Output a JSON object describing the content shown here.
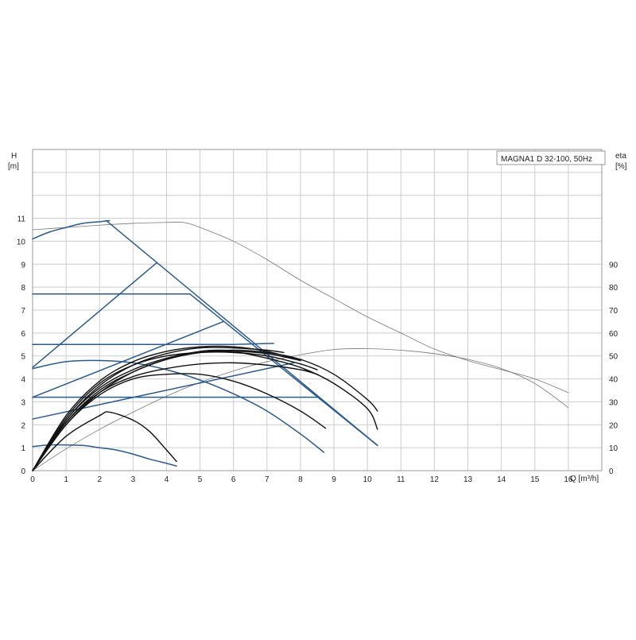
{
  "chart_data": {
    "type": "line",
    "title": "MAGNA1 D 32-100, 50Hz",
    "x_axis": {
      "label": "Q [m³/h]",
      "min": 0,
      "max": 17,
      "ticks": [
        0,
        1,
        2,
        3,
        4,
        5,
        6,
        7,
        8,
        9,
        10,
        11,
        12,
        13,
        14,
        15,
        16
      ]
    },
    "y_left": {
      "label_line1": "H",
      "label_line2": "[m]",
      "min": 0,
      "max": 14,
      "ticks": [
        0,
        1,
        2,
        3,
        4,
        5,
        6,
        7,
        8,
        9,
        10,
        11
      ]
    },
    "y_right": {
      "label_line1": "eta",
      "label_line2": "[%]",
      "min": 0,
      "max": 140,
      "ticks": [
        0,
        10,
        20,
        30,
        40,
        50,
        60,
        70,
        80,
        90
      ]
    },
    "grid": true,
    "colors": {
      "control": "#2a5b8c",
      "efficiency": "#111111",
      "gray": "#777777",
      "grid": "#cccccc"
    },
    "series": [
      {
        "group": "gray",
        "axis": "H",
        "points": [
          [
            0,
            10.5
          ],
          [
            1,
            10.6
          ],
          [
            2,
            10.7
          ],
          [
            3,
            10.78
          ],
          [
            4,
            10.82
          ],
          [
            4.5,
            10.82
          ],
          [
            5,
            10.6
          ],
          [
            6,
            10
          ],
          [
            7,
            9.2
          ],
          [
            8,
            8.3
          ],
          [
            9,
            7.5
          ],
          [
            10,
            6.7
          ],
          [
            11,
            6
          ],
          [
            12,
            5.3
          ],
          [
            13,
            4.8
          ],
          [
            14,
            4.4
          ],
          [
            15,
            4
          ],
          [
            16,
            3.4
          ]
        ]
      },
      {
        "group": "gray",
        "axis": "eta",
        "points": [
          [
            0,
            0
          ],
          [
            1,
            9.5
          ],
          [
            2,
            18
          ],
          [
            3,
            25.5
          ],
          [
            4,
            32.5
          ],
          [
            5,
            38.5
          ],
          [
            6,
            43.5
          ],
          [
            7,
            47.5
          ],
          [
            8,
            50.5
          ],
          [
            9,
            52.8
          ],
          [
            10,
            53.2
          ],
          [
            11,
            52.5
          ],
          [
            12,
            51
          ],
          [
            13,
            48.5
          ],
          [
            14,
            44.5
          ],
          [
            15,
            38
          ],
          [
            16,
            27.5
          ]
        ]
      },
      {
        "group": "control",
        "axis": "H",
        "points": [
          [
            0,
            10.1
          ],
          [
            0.5,
            10.4
          ],
          [
            1,
            10.6
          ],
          [
            1.5,
            10.78
          ],
          [
            2,
            10.85
          ],
          [
            2.3,
            10.9
          ]
        ]
      },
      {
        "group": "control",
        "axis": "H",
        "points": [
          [
            2.2,
            10.9
          ],
          [
            10.3,
            1.1
          ]
        ]
      },
      {
        "group": "control",
        "axis": "H",
        "points": [
          [
            0,
            7.7
          ],
          [
            4.7,
            7.7
          ],
          [
            10.3,
            1.1
          ]
        ]
      },
      {
        "group": "control",
        "axis": "H",
        "points": [
          [
            0,
            5.5
          ],
          [
            6,
            5.5
          ],
          [
            7.2,
            5.55
          ]
        ]
      },
      {
        "group": "control",
        "axis": "H",
        "points": [
          [
            0,
            3.2
          ],
          [
            8.5,
            3.2
          ]
        ]
      },
      {
        "group": "control",
        "axis": "H",
        "points": [
          [
            0,
            4.5
          ],
          [
            3.7,
            9.05
          ]
        ]
      },
      {
        "group": "control",
        "axis": "H",
        "points": [
          [
            0,
            3.2
          ],
          [
            5.7,
            6.5
          ]
        ]
      },
      {
        "group": "control",
        "axis": "H",
        "points": [
          [
            0,
            2.25
          ],
          [
            7.8,
            4.7
          ]
        ]
      },
      {
        "group": "control",
        "axis": "H",
        "points": [
          [
            0,
            4.45
          ],
          [
            1,
            4.75
          ],
          [
            2,
            4.8
          ],
          [
            3,
            4.7
          ],
          [
            4,
            4.4
          ],
          [
            5,
            3.95
          ],
          [
            6,
            3.35
          ],
          [
            7,
            2.6
          ],
          [
            8,
            1.6
          ],
          [
            8.7,
            0.8
          ]
        ]
      },
      {
        "group": "control",
        "axis": "H",
        "points": [
          [
            0,
            1.05
          ],
          [
            0.5,
            1.12
          ],
          [
            1,
            1.12
          ],
          [
            1.5,
            1.1
          ],
          [
            2,
            1.0
          ],
          [
            2.5,
            0.9
          ],
          [
            3,
            0.72
          ],
          [
            3.5,
            0.5
          ],
          [
            4,
            0.32
          ],
          [
            4.3,
            0.2
          ]
        ]
      },
      {
        "group": "efficiency",
        "axis": "eta",
        "points": [
          [
            0,
            0
          ],
          [
            1,
            15
          ],
          [
            2,
            24
          ],
          [
            2.3,
            25.5
          ],
          [
            3,
            22
          ],
          [
            3.5,
            17
          ],
          [
            4,
            9
          ],
          [
            4.3,
            4
          ]
        ]
      },
      {
        "group": "efficiency",
        "axis": "eta",
        "points": [
          [
            0,
            0
          ],
          [
            1,
            20
          ],
          [
            2,
            33
          ],
          [
            3,
            40
          ],
          [
            4,
            42
          ],
          [
            5,
            42
          ],
          [
            6,
            39
          ],
          [
            7,
            33.5
          ],
          [
            8,
            26
          ],
          [
            8.75,
            18.5
          ]
        ]
      },
      {
        "group": "efficiency",
        "axis": "eta",
        "points": [
          [
            0,
            0
          ],
          [
            1,
            21
          ],
          [
            2,
            34
          ],
          [
            3,
            41
          ],
          [
            4,
            44.5
          ],
          [
            5,
            46.5
          ],
          [
            6,
            47
          ],
          [
            7,
            46
          ],
          [
            8,
            44
          ],
          [
            8.5,
            42
          ]
        ]
      },
      {
        "group": "efficiency",
        "axis": "eta",
        "points": [
          [
            0,
            0
          ],
          [
            1,
            22
          ],
          [
            2,
            36
          ],
          [
            3,
            44
          ],
          [
            4,
            49
          ],
          [
            5,
            52
          ],
          [
            5.6,
            52.5
          ],
          [
            6,
            52
          ],
          [
            7,
            49
          ],
          [
            8,
            45
          ],
          [
            9,
            38
          ],
          [
            10,
            27
          ],
          [
            10.3,
            18
          ]
        ]
      },
      {
        "group": "efficiency",
        "axis": "eta",
        "points": [
          [
            0,
            0
          ],
          [
            1,
            21
          ],
          [
            2,
            35
          ],
          [
            3,
            43
          ],
          [
            4,
            48.5
          ],
          [
            5,
            51.5
          ],
          [
            6,
            52.5
          ],
          [
            7,
            51.5
          ],
          [
            8,
            48.5
          ],
          [
            9,
            42
          ],
          [
            10,
            31
          ],
          [
            10.3,
            26
          ]
        ]
      },
      {
        "group": "efficiency",
        "axis": "eta",
        "points": [
          [
            0,
            0
          ],
          [
            1,
            20
          ],
          [
            2,
            34
          ],
          [
            3,
            43
          ],
          [
            4,
            48.5
          ],
          [
            5,
            51.5
          ],
          [
            6,
            52
          ],
          [
            7,
            51
          ],
          [
            8,
            48
          ]
        ]
      },
      {
        "group": "efficiency",
        "axis": "eta",
        "points": [
          [
            0,
            0
          ],
          [
            1,
            23
          ],
          [
            2,
            38
          ],
          [
            3,
            46
          ],
          [
            4,
            50
          ],
          [
            5,
            51.5
          ],
          [
            6,
            51.5
          ],
          [
            7,
            50
          ],
          [
            8,
            46.5
          ],
          [
            8.5,
            44
          ]
        ]
      },
      {
        "group": "efficiency",
        "axis": "eta",
        "points": [
          [
            0,
            0
          ],
          [
            1,
            24
          ],
          [
            2,
            39
          ],
          [
            3,
            47.5
          ],
          [
            4,
            52
          ],
          [
            5,
            54
          ],
          [
            6,
            54
          ],
          [
            7,
            52
          ],
          [
            8,
            48
          ]
        ]
      },
      {
        "group": "efficiency",
        "axis": "eta",
        "points": [
          [
            0,
            0
          ],
          [
            1,
            22
          ],
          [
            2,
            37
          ],
          [
            3,
            46
          ],
          [
            4,
            51
          ],
          [
            5,
            53.5
          ],
          [
            6,
            53.5
          ],
          [
            7,
            52.5
          ],
          [
            7.5,
            51.5
          ]
        ]
      }
    ]
  }
}
